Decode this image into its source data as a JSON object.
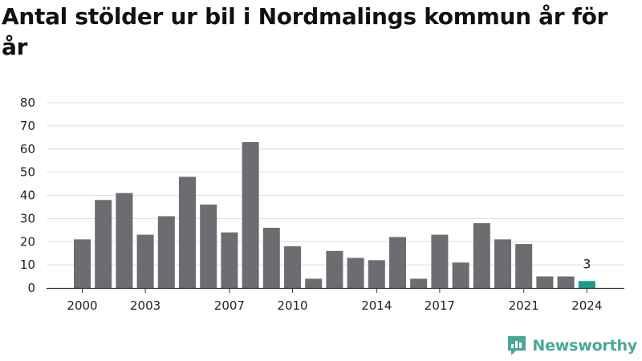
{
  "title": "Antal stölder ur bil i Nordmalings kommun år för år",
  "brand": {
    "name": "Newsworthy",
    "color": "#4aa89a"
  },
  "colors": {
    "bar": "#6d6c71",
    "highlight": "#1a9a8a",
    "grid": "#dddddd",
    "axis": "#333333"
  },
  "chart_data": {
    "type": "bar",
    "title": "Antal stölder ur bil i Nordmalings kommun år för år",
    "xlabel": "",
    "ylabel": "",
    "ylim": [
      0,
      80
    ],
    "yticks": [
      0,
      10,
      20,
      30,
      40,
      50,
      60,
      70,
      80
    ],
    "xticks": [
      2000,
      2003,
      2007,
      2010,
      2014,
      2017,
      2021,
      2024
    ],
    "grid": true,
    "x": [
      2000,
      2001,
      2002,
      2003,
      2004,
      2005,
      2006,
      2007,
      2008,
      2009,
      2010,
      2011,
      2012,
      2013,
      2014,
      2015,
      2016,
      2017,
      2018,
      2019,
      2020,
      2021,
      2022,
      2023,
      2024
    ],
    "values": [
      21,
      38,
      41,
      23,
      31,
      48,
      36,
      24,
      63,
      26,
      18,
      4,
      16,
      13,
      12,
      22,
      4,
      23,
      11,
      28,
      21,
      19,
      5,
      5,
      3
    ],
    "highlight": {
      "x": 2024,
      "label": "3"
    }
  }
}
